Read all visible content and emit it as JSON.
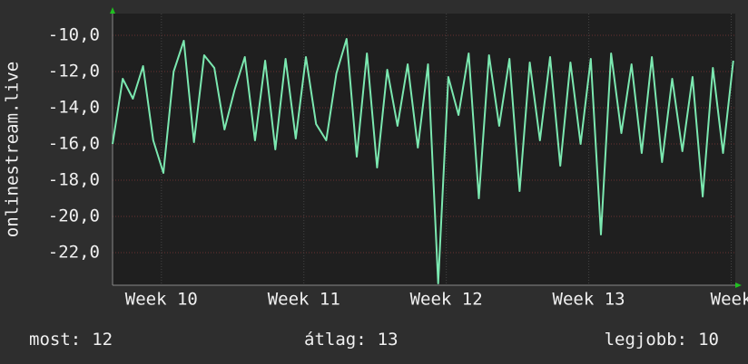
{
  "chart_data": {
    "type": "line",
    "y_label": "onlinestream.live",
    "x": [
      0,
      0.5,
      1,
      1.5,
      2,
      2.5,
      3,
      3.5,
      4,
      4.5,
      5,
      5.5,
      6,
      6.5,
      7,
      7.5,
      8,
      8.5,
      9,
      9.5,
      10,
      10.5,
      11,
      11.5,
      12,
      12.5,
      13,
      13.5,
      14,
      14.5,
      15,
      15.5,
      16,
      16.5,
      17,
      17.5,
      18,
      18.5,
      19,
      19.5,
      20,
      20.5,
      21,
      21.5,
      22,
      22.5,
      23,
      23.5,
      24,
      24.5,
      25,
      25.5,
      26,
      26.5,
      27,
      27.5,
      28,
      28.5,
      29,
      29.5,
      30,
      30.5
    ],
    "series": [
      {
        "color": "#7be8b0",
        "values": [
          -16.0,
          -12.4,
          -13.5,
          -11.7,
          -15.8,
          -17.6,
          -12.0,
          -10.3,
          -15.9,
          -11.1,
          -11.8,
          -15.2,
          -13.0,
          -11.2,
          -15.8,
          -11.4,
          -16.3,
          -11.3,
          -15.7,
          -11.2,
          -14.9,
          -15.8,
          -12.1,
          -10.2,
          -16.7,
          -11.0,
          -17.3,
          -11.9,
          -15.0,
          -11.6,
          -16.2,
          -11.6,
          -23.7,
          -12.3,
          -14.4,
          -11.0,
          -19.0,
          -11.1,
          -15.0,
          -11.3,
          -18.6,
          -11.5,
          -15.8,
          -11.2,
          -17.2,
          -11.5,
          -16.0,
          -11.3,
          -21.0,
          -11.0,
          -15.4,
          -11.6,
          -16.5,
          -11.2,
          -17.0,
          -12.4,
          -16.4,
          -12.3,
          -18.9,
          -11.8,
          -16.5,
          -11.4
        ]
      }
    ],
    "xlim": [
      0,
      30.6
    ],
    "xticks": [
      {
        "value": 2.4,
        "label": "Week 10"
      },
      {
        "value": 9.4,
        "label": "Week 11"
      },
      {
        "value": 16.4,
        "label": "Week 12"
      },
      {
        "value": 23.4,
        "label": "Week 13"
      },
      {
        "value": 30.4,
        "label": "Week"
      }
    ],
    "ylim": [
      -23.8,
      -8.8
    ],
    "yticks": [
      {
        "value": -10,
        "label": "-10,0"
      },
      {
        "value": -12,
        "label": "-12,0"
      },
      {
        "value": -14,
        "label": "-14,0"
      },
      {
        "value": -16,
        "label": "-16,0"
      },
      {
        "value": -18,
        "label": "-18,0"
      },
      {
        "value": -20,
        "label": "-20,0"
      },
      {
        "value": -22,
        "label": "-22,0"
      }
    ],
    "grid": true
  },
  "stats": [
    {
      "label": "most:",
      "value": 12
    },
    {
      "label": "átlag:",
      "value": 13
    },
    {
      "label": "legjobb:",
      "value": 10
    }
  ]
}
